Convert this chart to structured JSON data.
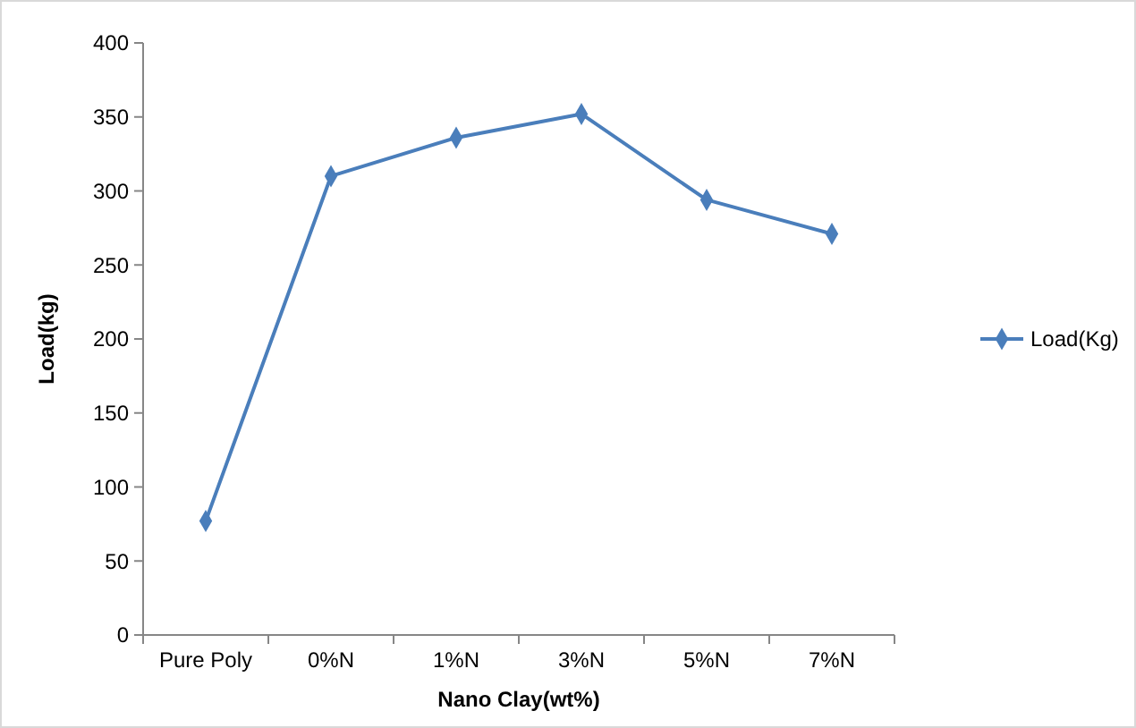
{
  "chart_data": {
    "type": "line",
    "xlabel": "Nano Clay(wt%)",
    "ylabel": "Load(kg)",
    "categories": [
      "Pure Poly",
      "0%N",
      "1%N",
      "3%N",
      "5%N",
      "7%N"
    ],
    "series": [
      {
        "name": "Load(Kg)",
        "color": "#4a7ebb",
        "values": [
          77,
          310,
          336,
          352,
          294,
          271
        ]
      }
    ],
    "ylim": [
      0,
      400
    ],
    "yticks": [
      0,
      50,
      100,
      150,
      200,
      250,
      300,
      350,
      400
    ],
    "marker": "diamond",
    "line_style": "solid",
    "legend": "right",
    "grid": false
  }
}
